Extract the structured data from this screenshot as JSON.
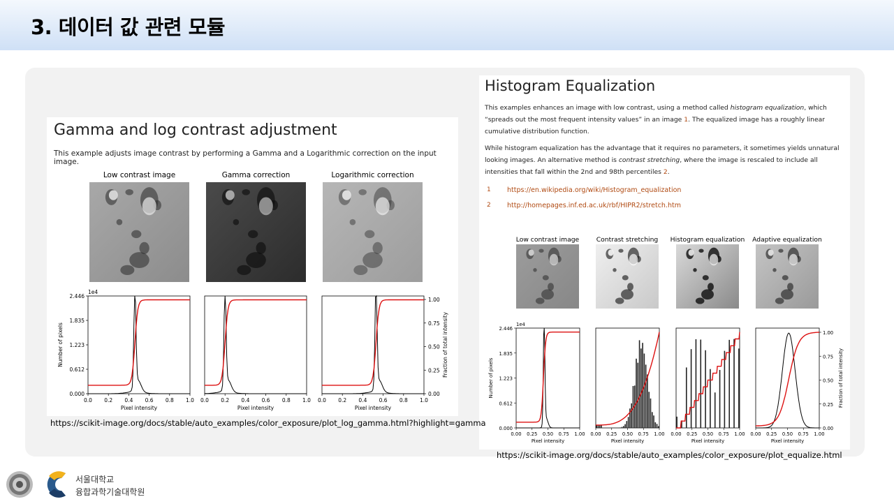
{
  "slide": {
    "title": "3. 데이터 값 관련 모듈"
  },
  "gamma_panel": {
    "heading": "Gamma and log contrast adjustment",
    "description": "This example adjusts image contrast by performing a Gamma and a Logarithmic correction on the input image.",
    "image_titles": [
      "Low contrast image",
      "Gamma correction",
      "Logarithmic correction"
    ],
    "y_scale_label": "1e4",
    "y_ticks": [
      "2.446",
      "1.835",
      "1.223",
      "0.612",
      "0.000"
    ],
    "right_ticks": [
      "1.00",
      "0.75",
      "0.50",
      "0.25",
      "0.00"
    ],
    "x_ticks": [
      "0.0",
      "0.2",
      "0.4",
      "0.6",
      "0.8",
      "1.0"
    ],
    "x_label": "Pixel intensity",
    "y_label": "Number of pixels",
    "right_label": "Fraction of total intensity",
    "source_url": "https://scikit-image.org/docs/stable/auto_examples/color_exposure/plot_log_gamma.html?highlight=gamma"
  },
  "eq_panel": {
    "heading": "Histogram Equalization",
    "para1_a": "This examples enhances an image with low contrast, using a method called ",
    "para1_em": "histogram equalization",
    "para1_b": ", which “spreads out the most frequent intensity values” in an image ",
    "para1_ref": "1",
    "para1_c": ". The equalized image has a roughly linear cumulative distribution function.",
    "para2_a": "While histogram equalization has the advantage that it requires no parameters, it sometimes yields unnatural looking images. An alternative method is ",
    "para2_em": "contrast stretching",
    "para2_b": ", where the image is rescaled to include all intensities that fall within the 2nd and 98th percentiles ",
    "para2_ref": "2",
    "para2_c": ".",
    "references": [
      {
        "num": "1",
        "url": "https://en.wikipedia.org/wiki/Histogram_equalization"
      },
      {
        "num": "2",
        "url": "http://homepages.inf.ed.ac.uk/rbf/HIPR2/stretch.htm"
      }
    ],
    "image_titles": [
      "Low contrast image",
      "Contrast stretching",
      "Histogram equalization",
      "Adaptive equalization"
    ],
    "y_scale_label": "1e4",
    "y_ticks": [
      "2.446",
      "1.835",
      "1.223",
      "0.612",
      "0.000"
    ],
    "right_ticks": [
      "1.00",
      "0.75",
      "0.50",
      "0.25",
      "0.00"
    ],
    "x_ticks": [
      "0.00",
      "0.25",
      "0.50",
      "0.75",
      "1.00"
    ],
    "x_label": "Pixel intensity",
    "y_label": "Number of pixels",
    "right_label": "Fraction of total intensity",
    "source_url": "https://scikit-image.org/docs/stable/auto_examples/color_exposure/plot_equalize.html"
  },
  "footer": {
    "org_line1": "서울대학교",
    "org_line2": "융합과학기술대학원"
  },
  "colors": {
    "cdf_line": "#dd1111",
    "hist_line": "#000000",
    "link": "#b04a12",
    "card_bg": "#f2f2f2"
  }
}
